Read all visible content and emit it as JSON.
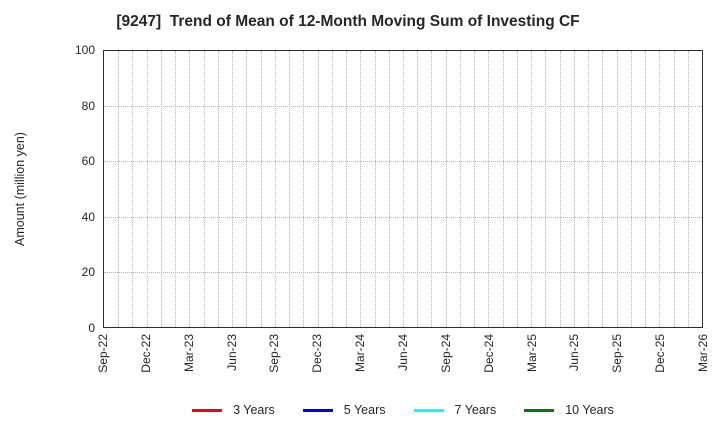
{
  "chart_data": {
    "type": "line",
    "title": "[9247]  Trend of Mean of 12-Month Moving Sum of Investing CF",
    "ylabel": "Amount (million yen)",
    "ylim": [
      0,
      100
    ],
    "yticks": [
      0,
      20,
      40,
      60,
      80,
      100
    ],
    "x_tick_labels": [
      "Sep-22",
      "Dec-22",
      "Mar-23",
      "Jun-23",
      "Sep-23",
      "Dec-23",
      "Mar-24",
      "Jun-24",
      "Sep-24",
      "Dec-24",
      "Mar-25",
      "Jun-25",
      "Sep-25",
      "Dec-25",
      "Mar-26"
    ],
    "x_minor_divisions": 42,
    "x_label_every": 3,
    "grid": true,
    "grid_style": "dotted",
    "legend_position": "bottom",
    "series": [
      {
        "name": "3 Years",
        "color": "#ff0000",
        "values": []
      },
      {
        "name": "5 Years",
        "color": "#0000ff",
        "values": []
      },
      {
        "name": "7 Years",
        "color": "#00ffff",
        "values": []
      },
      {
        "name": "10 Years",
        "color": "#008000",
        "values": []
      }
    ],
    "note": "plot area shows gridlines only; no data lines are drawn"
  },
  "colors": {
    "grid": "#b5b5b5",
    "border": "#2e2e2e",
    "text": "#262626",
    "background": "#ffffff"
  }
}
